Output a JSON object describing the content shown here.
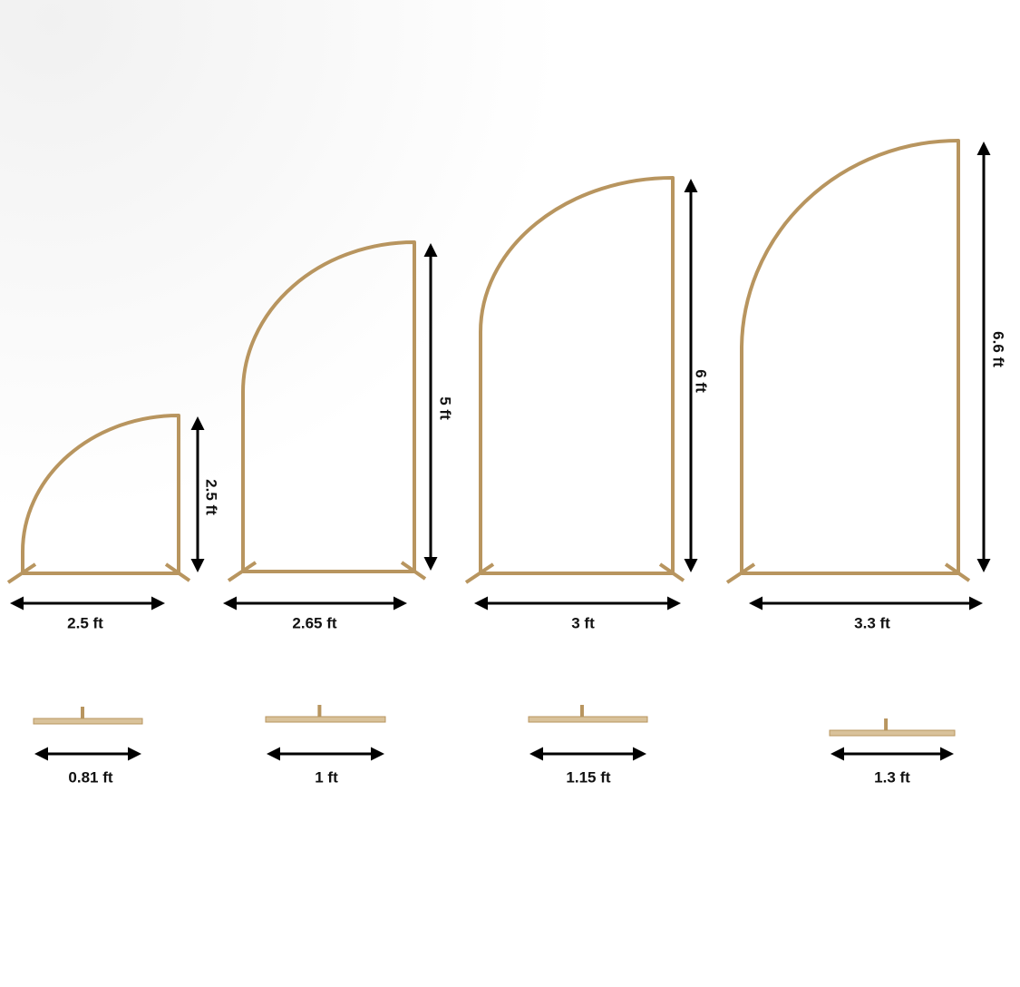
{
  "arches": [
    {
      "height": "2.5 ft",
      "width": "2.5 ft",
      "base": "0.81 ft"
    },
    {
      "height": "5 ft",
      "width": "2.65 ft",
      "base": "1 ft"
    },
    {
      "height": "6 ft",
      "width": "3 ft",
      "base": "1.15 ft"
    },
    {
      "height": "6.6 ft",
      "width": "3.3 ft",
      "base": "1.3 ft"
    }
  ]
}
